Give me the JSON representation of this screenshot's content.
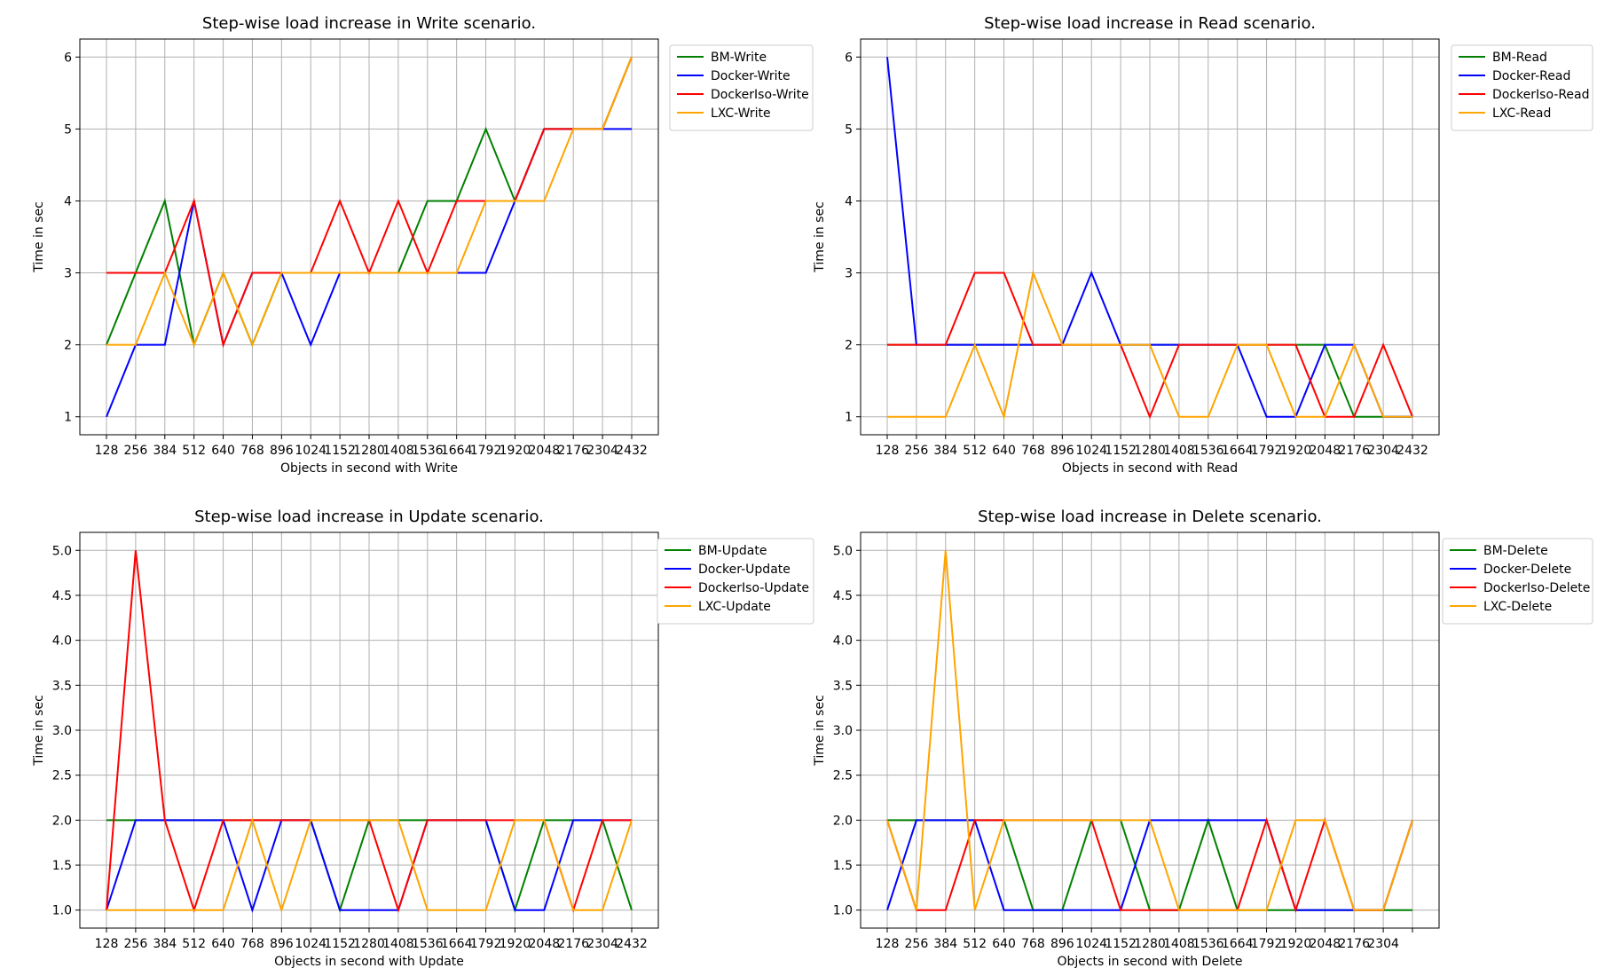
{
  "colors": {
    "BM": "#008000",
    "Docker": "#0000ff",
    "DockerIso": "#ff0000",
    "LXC": "#ffa500"
  },
  "chart_data": [
    {
      "type": "line",
      "title": "Step-wise load increase in Write scenario.",
      "xlabel": "Objects in second with Write",
      "ylabel": "Time in sec",
      "x_ticks": [
        "128",
        "256",
        "384",
        "512",
        "640",
        "768",
        "896",
        "1024",
        "1152",
        "1280",
        "1408",
        "1536",
        "1664",
        "1792",
        "1920",
        "2048",
        "2176",
        "2304",
        "2432"
      ],
      "y_ticks": [
        "1",
        "2",
        "3",
        "4",
        "5",
        "6"
      ],
      "ylim": [
        0.75,
        6.25
      ],
      "grid": true,
      "legend_position": "upper-right-outside",
      "series": [
        {
          "name": "BM-Write",
          "color_key": "BM",
          "values": [
            2,
            3,
            4,
            2,
            3,
            2,
            3,
            3,
            3,
            3,
            3,
            4,
            4,
            5,
            4,
            5,
            5,
            5,
            6
          ]
        },
        {
          "name": "Docker-Write",
          "color_key": "Docker",
          "values": [
            1,
            2,
            2,
            4,
            2,
            3,
            3,
            2,
            3,
            3,
            3,
            3,
            3,
            3,
            4,
            5,
            5,
            5,
            5
          ]
        },
        {
          "name": "DockerIso-Write",
          "color_key": "DockerIso",
          "values": [
            3,
            3,
            3,
            4,
            2,
            3,
            3,
            3,
            4,
            3,
            4,
            3,
            4,
            4,
            4,
            5,
            5,
            5,
            6
          ]
        },
        {
          "name": "LXC-Write",
          "color_key": "LXC",
          "values": [
            2,
            2,
            3,
            2,
            3,
            2,
            3,
            3,
            3,
            3,
            3,
            3,
            3,
            4,
            4,
            4,
            5,
            5,
            6
          ]
        }
      ]
    },
    {
      "type": "line",
      "title": "Step-wise load increase in Read scenario.",
      "xlabel": "Objects in second with Read",
      "ylabel": "Time in sec",
      "x_ticks": [
        "128",
        "256",
        "384",
        "512",
        "640",
        "768",
        "896",
        "1024",
        "1152",
        "1280",
        "1408",
        "1536",
        "1664",
        "1792",
        "1920",
        "2048",
        "2176",
        "2304",
        "2432"
      ],
      "y_ticks": [
        "1",
        "2",
        "3",
        "4",
        "5",
        "6"
      ],
      "ylim": [
        0.75,
        6.25
      ],
      "grid": true,
      "legend_position": "upper-right-outside",
      "series": [
        {
          "name": "BM-Read",
          "color_key": "BM",
          "values": [
            2,
            2,
            2,
            2,
            2,
            2,
            2,
            2,
            2,
            2,
            2,
            2,
            2,
            2,
            2,
            2,
            1,
            1,
            1
          ]
        },
        {
          "name": "Docker-Read",
          "color_key": "Docker",
          "values": [
            6,
            2,
            2,
            2,
            2,
            2,
            2,
            3,
            2,
            2,
            2,
            2,
            2,
            1,
            1,
            2,
            2,
            1,
            1
          ]
        },
        {
          "name": "DockerIso-Read",
          "color_key": "DockerIso",
          "values": [
            2,
            2,
            2,
            3,
            3,
            2,
            2,
            2,
            2,
            1,
            2,
            2,
            2,
            2,
            2,
            1,
            1,
            2,
            1
          ]
        },
        {
          "name": "LXC-Read",
          "color_key": "LXC",
          "values": [
            1,
            1,
            1,
            2,
            1,
            3,
            2,
            2,
            2,
            2,
            1,
            1,
            2,
            2,
            1,
            1,
            2,
            1,
            1
          ]
        }
      ]
    },
    {
      "type": "line",
      "title": "Step-wise load increase in Update scenario.",
      "xlabel": "Objects in second with Update",
      "ylabel": "Time in sec",
      "x_ticks": [
        "128",
        "256",
        "384",
        "512",
        "640",
        "768",
        "896",
        "1024",
        "1152",
        "1280",
        "1408",
        "1536",
        "1664",
        "1792",
        "1920",
        "2048",
        "2176",
        "2304",
        "2432"
      ],
      "y_ticks": [
        "1.0",
        "1.5",
        "2.0",
        "2.5",
        "3.0",
        "3.5",
        "4.0",
        "4.5",
        "5.0"
      ],
      "ylim": [
        0.8,
        5.2
      ],
      "grid": true,
      "legend_position": "upper-right-outside",
      "series": [
        {
          "name": "BM-Update",
          "color_key": "BM",
          "values": [
            2,
            2,
            2,
            2,
            2,
            2,
            2,
            2,
            1,
            2,
            2,
            2,
            2,
            2,
            1,
            2,
            2,
            2,
            1
          ]
        },
        {
          "name": "Docker-Update",
          "color_key": "Docker",
          "values": [
            1,
            2,
            2,
            2,
            2,
            1,
            2,
            2,
            1,
            1,
            1,
            2,
            2,
            2,
            1,
            1,
            2,
            2,
            2
          ]
        },
        {
          "name": "DockerIso-Update",
          "color_key": "DockerIso",
          "values": [
            1,
            5,
            2,
            1,
            2,
            2,
            2,
            2,
            2,
            2,
            1,
            2,
            2,
            2,
            2,
            2,
            1,
            2,
            2
          ]
        },
        {
          "name": "LXC-Update",
          "color_key": "LXC",
          "values": [
            1,
            1,
            1,
            1,
            1,
            2,
            1,
            2,
            2,
            2,
            2,
            1,
            1,
            1,
            2,
            2,
            1,
            1,
            2
          ]
        }
      ]
    },
    {
      "type": "line",
      "title": "Step-wise load increase in Delete scenario.",
      "xlabel": "Objects in second with Delete",
      "ylabel": "Time in sec",
      "x_ticks": [
        "128",
        "256",
        "384",
        "512",
        "640",
        "768",
        "896",
        "1024",
        "1152",
        "1280",
        "1408",
        "1536",
        "1664",
        "1792",
        "1920",
        "2048",
        "2176",
        "2304",
        ""
      ],
      "y_ticks": [
        "1.0",
        "1.5",
        "2.0",
        "2.5",
        "3.0",
        "3.5",
        "4.0",
        "4.5",
        "5.0"
      ],
      "ylim": [
        0.8,
        5.2
      ],
      "grid": true,
      "legend_position": "upper-right-outside",
      "series": [
        {
          "name": "BM-Delete",
          "color_key": "BM",
          "values": [
            2,
            2,
            2,
            2,
            2,
            1,
            1,
            2,
            2,
            1,
            1,
            2,
            1,
            1,
            1,
            1,
            1,
            1,
            1
          ]
        },
        {
          "name": "Docker-Delete",
          "color_key": "Docker",
          "values": [
            1,
            2,
            2,
            2,
            1,
            1,
            1,
            1,
            1,
            2,
            2,
            2,
            2,
            2,
            1,
            1,
            1,
            1,
            2
          ]
        },
        {
          "name": "DockerIso-Delete",
          "color_key": "DockerIso",
          "values": [
            2,
            1,
            1,
            2,
            2,
            2,
            2,
            2,
            1,
            1,
            1,
            1,
            1,
            2,
            1,
            2,
            1,
            1,
            2
          ]
        },
        {
          "name": "LXC-Delete",
          "color_key": "LXC",
          "values": [
            2,
            1,
            5,
            1,
            2,
            2,
            2,
            2,
            2,
            2,
            1,
            1,
            1,
            1,
            2,
            2,
            1,
            1,
            2
          ]
        }
      ]
    }
  ]
}
